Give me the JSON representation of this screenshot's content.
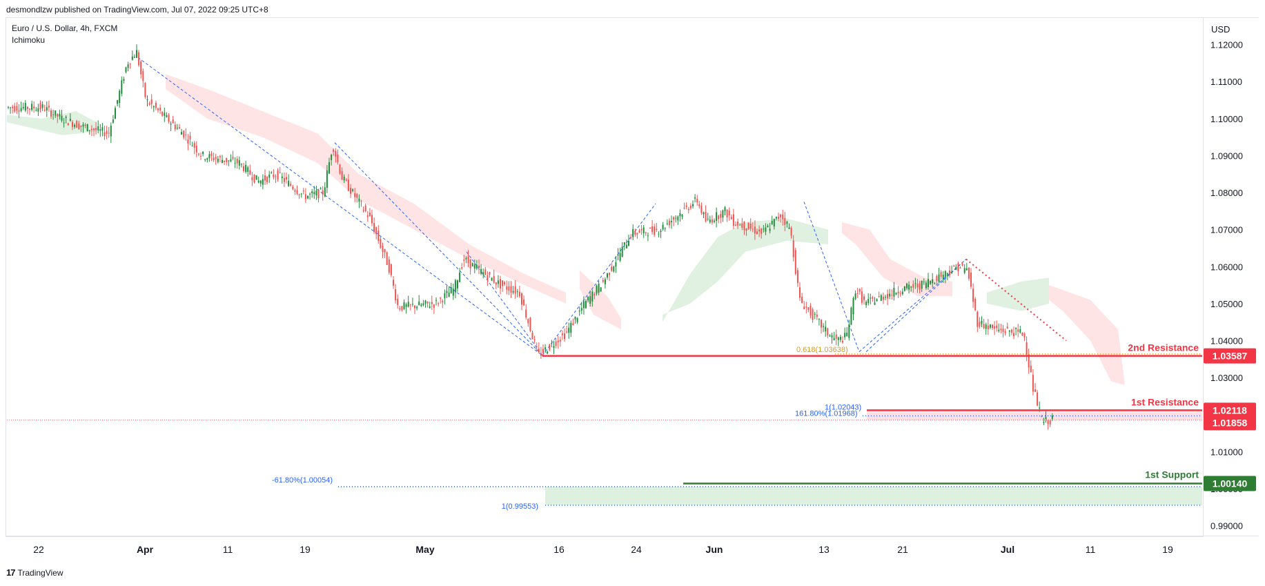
{
  "header": {
    "published_by": "desmondlzw published on TradingView.com, Jul 07, 2022 09:25 UTC+8"
  },
  "legend": {
    "symbol": "Euro / U.S. Dollar, 4h, FXCM",
    "indicator": "Ichimoku"
  },
  "footer": {
    "logo": "17",
    "brand": "TradingView"
  },
  "colors": {
    "up": "#26a69a",
    "up_body": "#1e8c3a",
    "down": "#ef5350",
    "resistance": "#f23645",
    "support": "#2e7d32",
    "fib_orange": "#e09a1a",
    "fib_blue": "#2962ff",
    "cloud_bull": "#c8e6c9",
    "cloud_bear": "#ffcdd2"
  },
  "chart_data": {
    "type": "line",
    "currency_label": "USD",
    "y_ticks": [
      "1.12000",
      "1.11000",
      "1.10000",
      "1.09000",
      "1.08000",
      "1.07000",
      "1.06000",
      "1.05000",
      "1.04000",
      "1.03000",
      "1.02000",
      "1.01000",
      "1.00000",
      "0.99000"
    ],
    "x_ticks": [
      {
        "label": "22",
        "month": false
      },
      {
        "label": "Apr",
        "month": true
      },
      {
        "label": "11",
        "month": false
      },
      {
        "label": "19",
        "month": false
      },
      {
        "label": "May",
        "month": true
      },
      {
        "label": "16",
        "month": false
      },
      {
        "label": "24",
        "month": false
      },
      {
        "label": "Jun",
        "month": true
      },
      {
        "label": "13",
        "month": false
      },
      {
        "label": "21",
        "month": false
      },
      {
        "label": "Jul",
        "month": true
      },
      {
        "label": "11",
        "month": false
      },
      {
        "label": "19",
        "month": false
      }
    ],
    "ylim": [
      0.9875,
      1.127
    ],
    "price_path": [
      [
        "2022-03-21",
        1.103
      ],
      [
        "2022-03-23",
        1.1
      ],
      [
        "2022-03-25",
        1.098
      ],
      [
        "2022-03-28",
        1.096
      ],
      [
        "2022-03-30",
        1.115
      ],
      [
        "2022-03-31",
        1.118
      ],
      [
        "2022-04-01",
        1.105
      ],
      [
        "2022-04-05",
        1.096
      ],
      [
        "2022-04-07",
        1.09
      ],
      [
        "2022-04-11",
        1.088
      ],
      [
        "2022-04-13",
        1.083
      ],
      [
        "2022-04-15",
        1.085
      ],
      [
        "2022-04-18",
        1.079
      ],
      [
        "2022-04-20",
        1.08
      ],
      [
        "2022-04-21",
        1.093
      ],
      [
        "2022-04-22",
        1.084
      ],
      [
        "2022-04-25",
        1.073
      ],
      [
        "2022-04-27",
        1.06
      ],
      [
        "2022-04-28",
        1.049
      ],
      [
        "2022-05-02",
        1.05
      ],
      [
        "2022-05-04",
        1.054
      ],
      [
        "2022-05-05",
        1.062
      ],
      [
        "2022-05-09",
        1.055
      ],
      [
        "2022-05-11",
        1.053
      ],
      [
        "2022-05-13",
        1.036
      ],
      [
        "2022-05-16",
        1.042
      ],
      [
        "2022-05-18",
        1.05
      ],
      [
        "2022-05-20",
        1.056
      ],
      [
        "2022-05-23",
        1.069
      ],
      [
        "2022-05-26",
        1.07
      ],
      [
        "2022-05-30",
        1.078
      ],
      [
        "2022-05-31",
        1.072
      ],
      [
        "2022-06-02",
        1.075
      ],
      [
        "2022-06-03",
        1.072
      ],
      [
        "2022-06-06",
        1.069
      ],
      [
        "2022-06-08",
        1.074
      ],
      [
        "2022-06-09",
        1.07
      ],
      [
        "2022-06-10",
        1.051
      ],
      [
        "2022-06-13",
        1.042
      ],
      [
        "2022-06-14",
        1.04
      ],
      [
        "2022-06-15",
        1.041
      ],
      [
        "2022-06-16",
        1.054
      ],
      [
        "2022-06-17",
        1.05
      ],
      [
        "2022-06-21",
        1.054
      ],
      [
        "2022-06-23",
        1.055
      ],
      [
        "2022-06-27",
        1.06
      ],
      [
        "2022-06-28",
        1.059
      ],
      [
        "2022-06-29",
        1.045
      ],
      [
        "2022-07-01",
        1.043
      ],
      [
        "2022-07-04",
        1.042
      ],
      [
        "2022-07-05",
        1.027
      ],
      [
        "2022-07-06",
        1.018
      ],
      [
        "2022-07-07",
        1.0186
      ]
    ],
    "horizontal_levels": [
      {
        "name": "2nd Resistance",
        "price": 1.03587,
        "label": "1.03587",
        "color": "#f23645"
      },
      {
        "name": "1st Resistance",
        "price": 1.02118,
        "label": "1.02118",
        "color": "#f23645"
      },
      {
        "name": "1st Support",
        "price": 1.0014,
        "label": "1.00140",
        "color": "#2e7d32"
      }
    ],
    "last_price": {
      "price": 1.01858,
      "label": "1.01858"
    },
    "fib_labels": [
      {
        "text": "0.618(1.03638)",
        "price": 1.03638,
        "color": "#e09a1a"
      },
      {
        "text": "1(1.02043)",
        "price": 1.02043,
        "color": "#2962ff"
      },
      {
        "text": "161.80%(1.01968)",
        "price": 1.01968,
        "color": "#2962ff"
      },
      {
        "text": "-61.80%(1.00054)",
        "price": 1.00054,
        "color": "#2962ff"
      },
      {
        "text": "1(0.99553)",
        "price": 0.99553,
        "color": "#2962ff"
      }
    ]
  }
}
